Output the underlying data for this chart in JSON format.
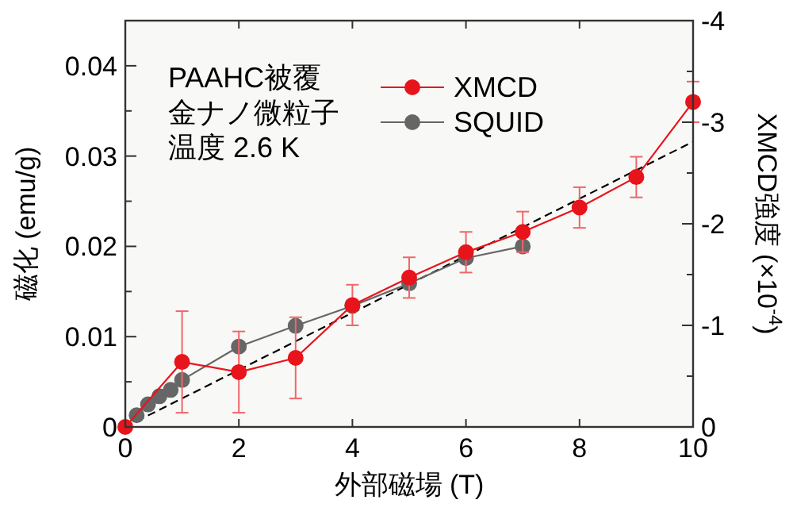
{
  "chart_data": {
    "type": "line",
    "xlabel": "外部磁場 (T)",
    "ylabel": "磁化 (emu/g)",
    "y2label": "XMCD強度 (×10$^{-4}$)",
    "annotations": [
      "PAAHC被覆",
      "金ナノ微粒子",
      "温度 2.6 K"
    ],
    "xlim": [
      0,
      10
    ],
    "xticks": [
      0,
      2,
      4,
      6,
      8,
      10
    ],
    "ylim": [
      0,
      0.045
    ],
    "yticks": [
      0,
      {
        "value": 0.005,
        "label": null
      },
      0.01,
      {
        "value": 0.015,
        "label": null
      },
      0.02,
      {
        "value": 0.025,
        "label": null
      },
      0.03,
      {
        "value": 0.035,
        "label": null
      },
      0.04
    ],
    "y2lim": [
      0,
      -4
    ],
    "y2ticks": [
      0,
      {
        "value": -0.5,
        "label": null
      },
      -1,
      {
        "value": -1.5,
        "label": null
      },
      -2,
      {
        "value": -2.5,
        "label": null
      },
      -3,
      {
        "value": -3.5,
        "label": null
      },
      -4
    ],
    "legend": "top",
    "marker": "circle",
    "line_style": "solid",
    "grid": false,
    "series": [
      {
        "name": "XMCD",
        "color": "#e8141c",
        "axis": "y2",
        "x": [
          0,
          1,
          2,
          3,
          4,
          5,
          6,
          7,
          8,
          9,
          10
        ],
        "values": [
          0,
          -0.64,
          -0.54,
          -0.68,
          -1.2,
          -1.47,
          -1.72,
          -1.92,
          -2.16,
          -2.46,
          -3.2
        ],
        "errors": [
          null,
          0.5,
          0.4,
          0.4,
          0.2,
          0.2,
          0.2,
          0.2,
          0.2,
          0.2,
          0.2
        ]
      },
      {
        "name": "SQUID",
        "color": "#666666",
        "x": [
          0.2,
          0.4,
          0.6,
          0.8,
          1,
          2,
          3,
          4,
          5,
          6,
          7
        ],
        "values": [
          0.0013,
          0.0025,
          0.0034,
          0.0041,
          0.0052,
          0.0089,
          0.0112,
          0.0134,
          0.0159,
          0.0187,
          0.02
        ]
      },
      {
        "color": "#000000",
        "marker": "none",
        "line_style": "dashed",
        "x": [
          0,
          10
        ],
        "values": [
          0,
          0.0316
        ]
      }
    ]
  }
}
